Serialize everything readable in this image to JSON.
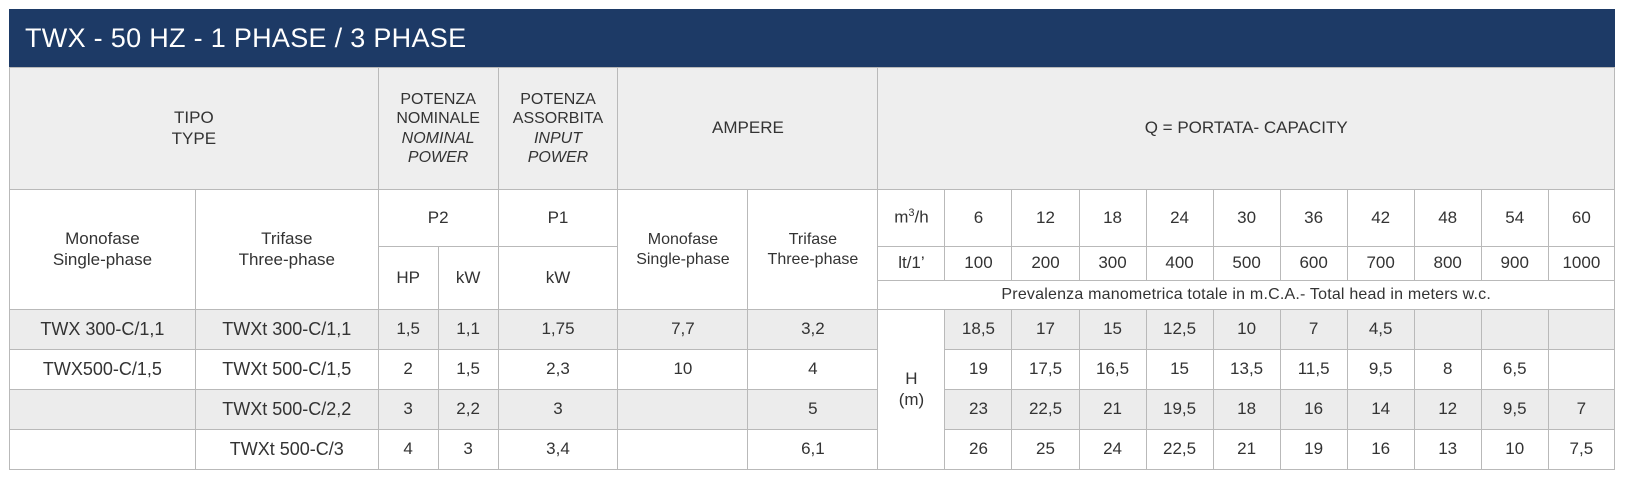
{
  "title": "TWX - 50 HZ - 1 PHASE / 3 PHASE",
  "header": {
    "tipo": "TIPO",
    "type": "TYPE",
    "potenza_nominale_1": "POTENZA",
    "potenza_nominale_2": "NOMINALE",
    "nominal_power_1": "NOMINAL",
    "nominal_power_2": "POWER",
    "potenza_assorbita_1": "POTENZA",
    "potenza_assorbita_2": "ASSORBITA",
    "input_power_1": "INPUT",
    "input_power_2": "POWER",
    "ampere": "AMPERE",
    "capacity": "Q = PORTATA- CAPACITY",
    "monofase": "Monofase",
    "single_phase": "Single-phase",
    "trifase": "Trifase",
    "three_phase": "Three-phase",
    "p2": "P2",
    "p1": "P1",
    "hp": "HP",
    "kw": "kW",
    "amp_monofase": "Monofase",
    "amp_single_phase": "Single-phase",
    "amp_trifase": "Trifase",
    "amp_three_phase": "Three-phase",
    "m3h_base": "m",
    "m3h_exp": "3",
    "m3h_tail": "/h",
    "lt": "lt/1’",
    "m3h_values": [
      "6",
      "12",
      "18",
      "24",
      "30",
      "36",
      "42",
      "48",
      "54",
      "60"
    ],
    "lt_values": [
      "100",
      "200",
      "300",
      "400",
      "500",
      "600",
      "700",
      "800",
      "900",
      "1000"
    ],
    "prevalenza": "Prevalenza manometrica totale in m.C.A.- Total head in meters w.c.",
    "h": "H",
    "m": "(m)"
  },
  "rows": [
    {
      "mono": "TWX 300-C/1,1",
      "tri": "TWXt 300-C/1,1",
      "hp": "1,5",
      "kw2": "1,1",
      "kw1": "1,75",
      "amp_mono": "7,7",
      "amp_tri": "3,2",
      "heads": [
        "18,5",
        "17",
        "15",
        "12,5",
        "10",
        "7",
        "4,5",
        "",
        "",
        ""
      ]
    },
    {
      "mono": "TWX500-C/1,5",
      "tri": "TWXt 500-C/1,5",
      "hp": "2",
      "kw2": "1,5",
      "kw1": "2,3",
      "amp_mono": "10",
      "amp_tri": "4",
      "heads": [
        "19",
        "17,5",
        "16,5",
        "15",
        "13,5",
        "11,5",
        "9,5",
        "8",
        "6,5",
        ""
      ]
    },
    {
      "mono": "",
      "tri": "TWXt 500-C/2,2",
      "hp": "3",
      "kw2": "2,2",
      "kw1": "3",
      "amp_mono": "",
      "amp_tri": "5",
      "heads": [
        "23",
        "22,5",
        "21",
        "19,5",
        "18",
        "16",
        "14",
        "12",
        "9,5",
        "7"
      ]
    },
    {
      "mono": "",
      "tri": "TWXt 500-C/3",
      "hp": "4",
      "kw2": "3",
      "kw1": "3,4",
      "amp_mono": "",
      "amp_tri": "6,1",
      "heads": [
        "26",
        "25",
        "24",
        "22,5",
        "21",
        "19",
        "16",
        "13",
        "10",
        "7,5"
      ]
    }
  ]
}
